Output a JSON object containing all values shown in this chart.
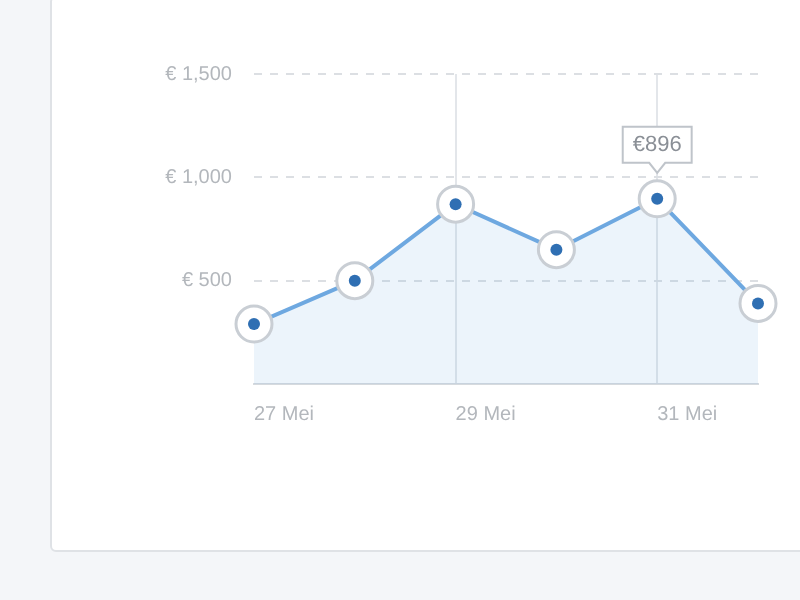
{
  "chart_data": {
    "type": "area",
    "categories": [
      "27 Mei",
      null,
      "29 Mei",
      null,
      "31 Mei",
      null
    ],
    "series": [
      {
        "color": "#6ea8e0",
        "values": [
          290,
          500,
          870,
          650,
          896,
          390
        ],
        "value_labels": [
          null,
          null,
          null,
          null,
          "€896",
          null
        ]
      }
    ],
    "ylim": [
      0,
      1500
    ],
    "yticks": [
      {
        "value": 500,
        "label": "€ 500"
      },
      {
        "value": 1000,
        "label": "€ 1,000"
      },
      {
        "value": 1500,
        "label": "€ 1,500"
      }
    ],
    "grid": true,
    "marker": "circle",
    "legend": false
  }
}
